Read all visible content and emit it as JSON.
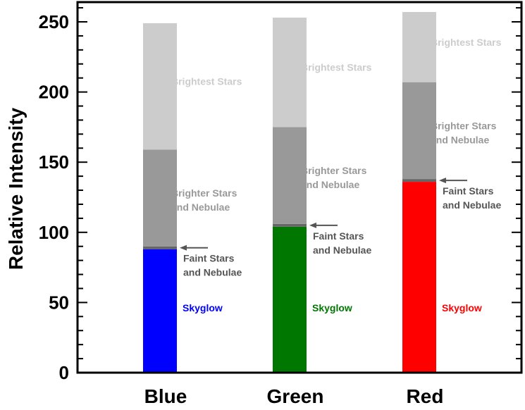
{
  "chart_data": {
    "type": "bar",
    "stacked": true,
    "ylabel": "Relative Intensity",
    "xlabel": "",
    "ylim": [
      0,
      265
    ],
    "yticks": [
      0,
      50,
      100,
      150,
      200,
      250
    ],
    "categories": [
      "Blue",
      "Green",
      "Red"
    ],
    "category_colors": [
      "#0000ff",
      "#007700",
      "#ff0000"
    ],
    "series": [
      {
        "name": "Skyglow",
        "color_by_category": true,
        "values": [
          88,
          104,
          136
        ]
      },
      {
        "name": "Faint Stars and Nebulae",
        "color": "#666666",
        "values": [
          2,
          2,
          2
        ]
      },
      {
        "name": "Brighter Stars and Nebulae",
        "color": "#999999",
        "values": [
          69,
          69,
          69
        ]
      },
      {
        "name": "Brightest Stars",
        "color": "#cccccc",
        "values": [
          90,
          78,
          50
        ]
      }
    ],
    "grid": false,
    "annotations": {
      "skyglow_label": "Skyglow",
      "faint_label_line1": "Faint Stars",
      "faint_label_line2": "and Nebulae",
      "brighter_label_line1": "Brighter Stars",
      "brighter_label_line2": "and Nebulae",
      "brightest_label": "Brightest Stars"
    }
  }
}
